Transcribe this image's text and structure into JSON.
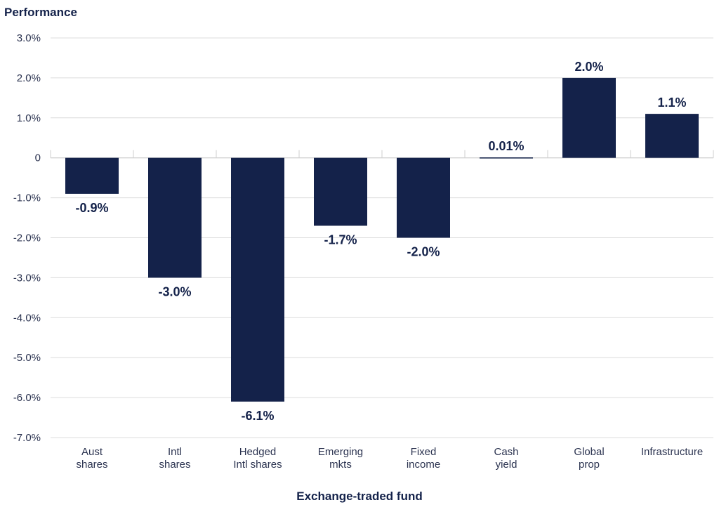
{
  "colors": {
    "bar": "#14224a",
    "grid": "#dcdcdc",
    "text": "#2b3350"
  },
  "chart_data": {
    "type": "bar",
    "title": "",
    "ylabel": "Performance",
    "xlabel": "Exchange-traded fund",
    "ylim": [
      -7.0,
      3.0
    ],
    "yticks": [
      3.0,
      2.0,
      1.0,
      0,
      -1.0,
      -2.0,
      -3.0,
      -4.0,
      -5.0,
      -6.0,
      -7.0
    ],
    "ytick_labels": [
      "3.0%",
      "2.0%",
      "1.0%",
      "0",
      "-1.0%",
      "-2.0%",
      "-3.0%",
      "-4.0%",
      "-5.0%",
      "-6.0%",
      "-7.0%"
    ],
    "categories": [
      [
        "Aust",
        "shares"
      ],
      [
        "Intl",
        "shares"
      ],
      [
        "Hedged",
        "Intl shares"
      ],
      [
        "Emerging",
        "mkts"
      ],
      [
        "Fixed",
        "income"
      ],
      [
        "Cash",
        "yield"
      ],
      [
        "Global",
        "prop"
      ],
      [
        "Infrastructure"
      ]
    ],
    "values": [
      -0.9,
      -3.0,
      -6.1,
      -1.7,
      -2.0,
      0.01,
      2.0,
      1.1
    ],
    "data_labels": [
      "-0.9%",
      "-3.0%",
      "-6.1%",
      "-1.7%",
      "-2.0%",
      "0.01%",
      "2.0%",
      "1.1%"
    ],
    "grid": true,
    "legend": "none"
  }
}
